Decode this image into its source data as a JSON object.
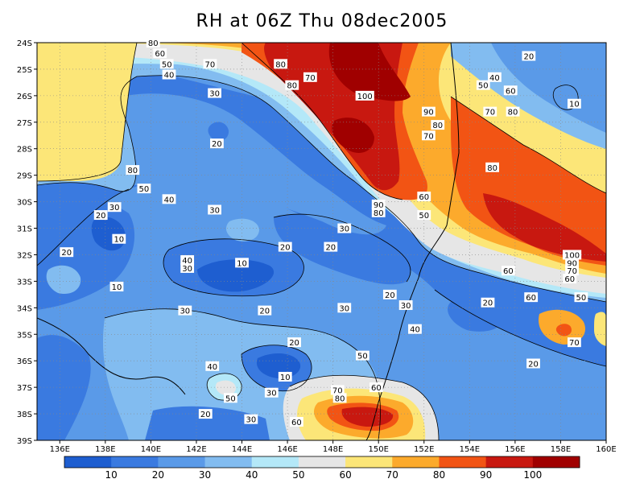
{
  "title": "RH at 06Z Thu 08dec2005",
  "map": {
    "lat_labels": [
      "24S",
      "25S",
      "26S",
      "27S",
      "28S",
      "29S",
      "30S",
      "31S",
      "32S",
      "33S",
      "34S",
      "35S",
      "36S",
      "37S",
      "38S",
      "39S"
    ],
    "lon_labels": [
      "136E",
      "138E",
      "140E",
      "142E",
      "144E",
      "146E",
      "148E",
      "150E",
      "152E",
      "154E",
      "156E",
      "158E",
      "160E"
    ],
    "lat_range": [
      -39,
      -24
    ],
    "lon_range": [
      135,
      160
    ],
    "grid": true,
    "grid_style": "dotted",
    "contour_labels": [
      {
        "text": "80",
        "lon": 139.2,
        "lat": -28.8
      },
      {
        "text": "50",
        "lon": 139.7,
        "lat": -29.5
      },
      {
        "text": "40",
        "lon": 140.8,
        "lat": -29.9
      },
      {
        "text": "30",
        "lon": 138.4,
        "lat": -30.2
      },
      {
        "text": "20",
        "lon": 137.8,
        "lat": -30.5
      },
      {
        "text": "10",
        "lon": 138.6,
        "lat": -31.4
      },
      {
        "text": "20",
        "lon": 136.3,
        "lat": -31.9
      },
      {
        "text": "10",
        "lon": 138.5,
        "lat": -33.2
      },
      {
        "text": "40",
        "lon": 141.6,
        "lat": -32.2
      },
      {
        "text": "30",
        "lon": 141.6,
        "lat": -32.5
      },
      {
        "text": "30",
        "lon": 142.8,
        "lat": -30.3
      },
      {
        "text": "20",
        "lon": 142.9,
        "lat": -27.8
      },
      {
        "text": "30",
        "lon": 142.8,
        "lat": -25.9
      },
      {
        "text": "40",
        "lon": 140.8,
        "lat": -25.2
      },
      {
        "text": "50",
        "lon": 140.7,
        "lat": -24.8
      },
      {
        "text": "60",
        "lon": 140.4,
        "lat": -24.4
      },
      {
        "text": "80",
        "lon": 140.1,
        "lat": -24.0
      },
      {
        "text": "70",
        "lon": 142.6,
        "lat": -24.8
      },
      {
        "text": "80",
        "lon": 145.7,
        "lat": -24.8
      },
      {
        "text": "70",
        "lon": 147.0,
        "lat": -25.3
      },
      {
        "text": "80",
        "lon": 146.2,
        "lat": -25.6
      },
      {
        "text": "100",
        "lon": 149.4,
        "lat": -26.0
      },
      {
        "text": "90",
        "lon": 152.2,
        "lat": -26.6
      },
      {
        "text": "80",
        "lon": 152.6,
        "lat": -27.1
      },
      {
        "text": "70",
        "lon": 152.2,
        "lat": -27.5
      },
      {
        "text": "70",
        "lon": 154.9,
        "lat": -26.6
      },
      {
        "text": "80",
        "lon": 155.9,
        "lat": -26.6
      },
      {
        "text": "60",
        "lon": 155.8,
        "lat": -25.8
      },
      {
        "text": "50",
        "lon": 154.6,
        "lat": -25.6
      },
      {
        "text": "40",
        "lon": 155.1,
        "lat": -25.3
      },
      {
        "text": "20",
        "lon": 156.6,
        "lat": -24.5
      },
      {
        "text": "10",
        "lon": 158.6,
        "lat": -26.3
      },
      {
        "text": "80",
        "lon": 155.0,
        "lat": -28.7
      },
      {
        "text": "60",
        "lon": 152.0,
        "lat": -29.8
      },
      {
        "text": "50",
        "lon": 152.0,
        "lat": -30.5
      },
      {
        "text": "90",
        "lon": 150.0,
        "lat": -30.1
      },
      {
        "text": "80",
        "lon": 150.0,
        "lat": -30.4
      },
      {
        "text": "30",
        "lon": 148.5,
        "lat": -31.0
      },
      {
        "text": "20",
        "lon": 145.9,
        "lat": -31.7
      },
      {
        "text": "20",
        "lon": 147.9,
        "lat": -31.7
      },
      {
        "text": "10",
        "lon": 144.0,
        "lat": -32.3
      },
      {
        "text": "100",
        "lon": 158.5,
        "lat": -32.0
      },
      {
        "text": "90",
        "lon": 158.5,
        "lat": -32.3
      },
      {
        "text": "70",
        "lon": 158.5,
        "lat": -32.6
      },
      {
        "text": "60",
        "lon": 158.4,
        "lat": -32.9
      },
      {
        "text": "60",
        "lon": 155.7,
        "lat": -32.6
      },
      {
        "text": "60",
        "lon": 156.7,
        "lat": -33.6
      },
      {
        "text": "50",
        "lon": 158.9,
        "lat": -33.6
      },
      {
        "text": "20",
        "lon": 150.5,
        "lat": -33.5
      },
      {
        "text": "30",
        "lon": 151.2,
        "lat": -33.9
      },
      {
        "text": "30",
        "lon": 148.5,
        "lat": -34.0
      },
      {
        "text": "20",
        "lon": 145.0,
        "lat": -34.1
      },
      {
        "text": "30",
        "lon": 141.5,
        "lat": -34.1
      },
      {
        "text": "20",
        "lon": 154.8,
        "lat": -33.8
      },
      {
        "text": "40",
        "lon": 151.6,
        "lat": -34.8
      },
      {
        "text": "70",
        "lon": 158.6,
        "lat": -35.3
      },
      {
        "text": "20",
        "lon": 146.3,
        "lat": -35.3
      },
      {
        "text": "50",
        "lon": 149.3,
        "lat": -35.8
      },
      {
        "text": "20",
        "lon": 156.8,
        "lat": -36.1
      },
      {
        "text": "40",
        "lon": 142.7,
        "lat": -36.2
      },
      {
        "text": "10",
        "lon": 145.9,
        "lat": -36.6
      },
      {
        "text": "60",
        "lon": 149.9,
        "lat": -37.0
      },
      {
        "text": "70",
        "lon": 148.2,
        "lat": -37.1
      },
      {
        "text": "80",
        "lon": 148.3,
        "lat": -37.4
      },
      {
        "text": "50",
        "lon": 143.5,
        "lat": -37.4
      },
      {
        "text": "30",
        "lon": 145.3,
        "lat": -37.2
      },
      {
        "text": "20",
        "lon": 142.4,
        "lat": -38.0
      },
      {
        "text": "30",
        "lon": 144.4,
        "lat": -38.2
      },
      {
        "text": "60",
        "lon": 146.4,
        "lat": -38.3
      }
    ]
  },
  "colorbar": {
    "tick_labels": [
      "10",
      "20",
      "30",
      "40",
      "50",
      "60",
      "70",
      "80",
      "90",
      "100"
    ],
    "colors": [
      "#1e5ed0",
      "#3a7ae0",
      "#5a9ae8",
      "#82bcf0",
      "#b4e8f8",
      "#e6e6e6",
      "#fce678",
      "#fcaa2c",
      "#f25414",
      "#c81810",
      "#a00000"
    ]
  }
}
